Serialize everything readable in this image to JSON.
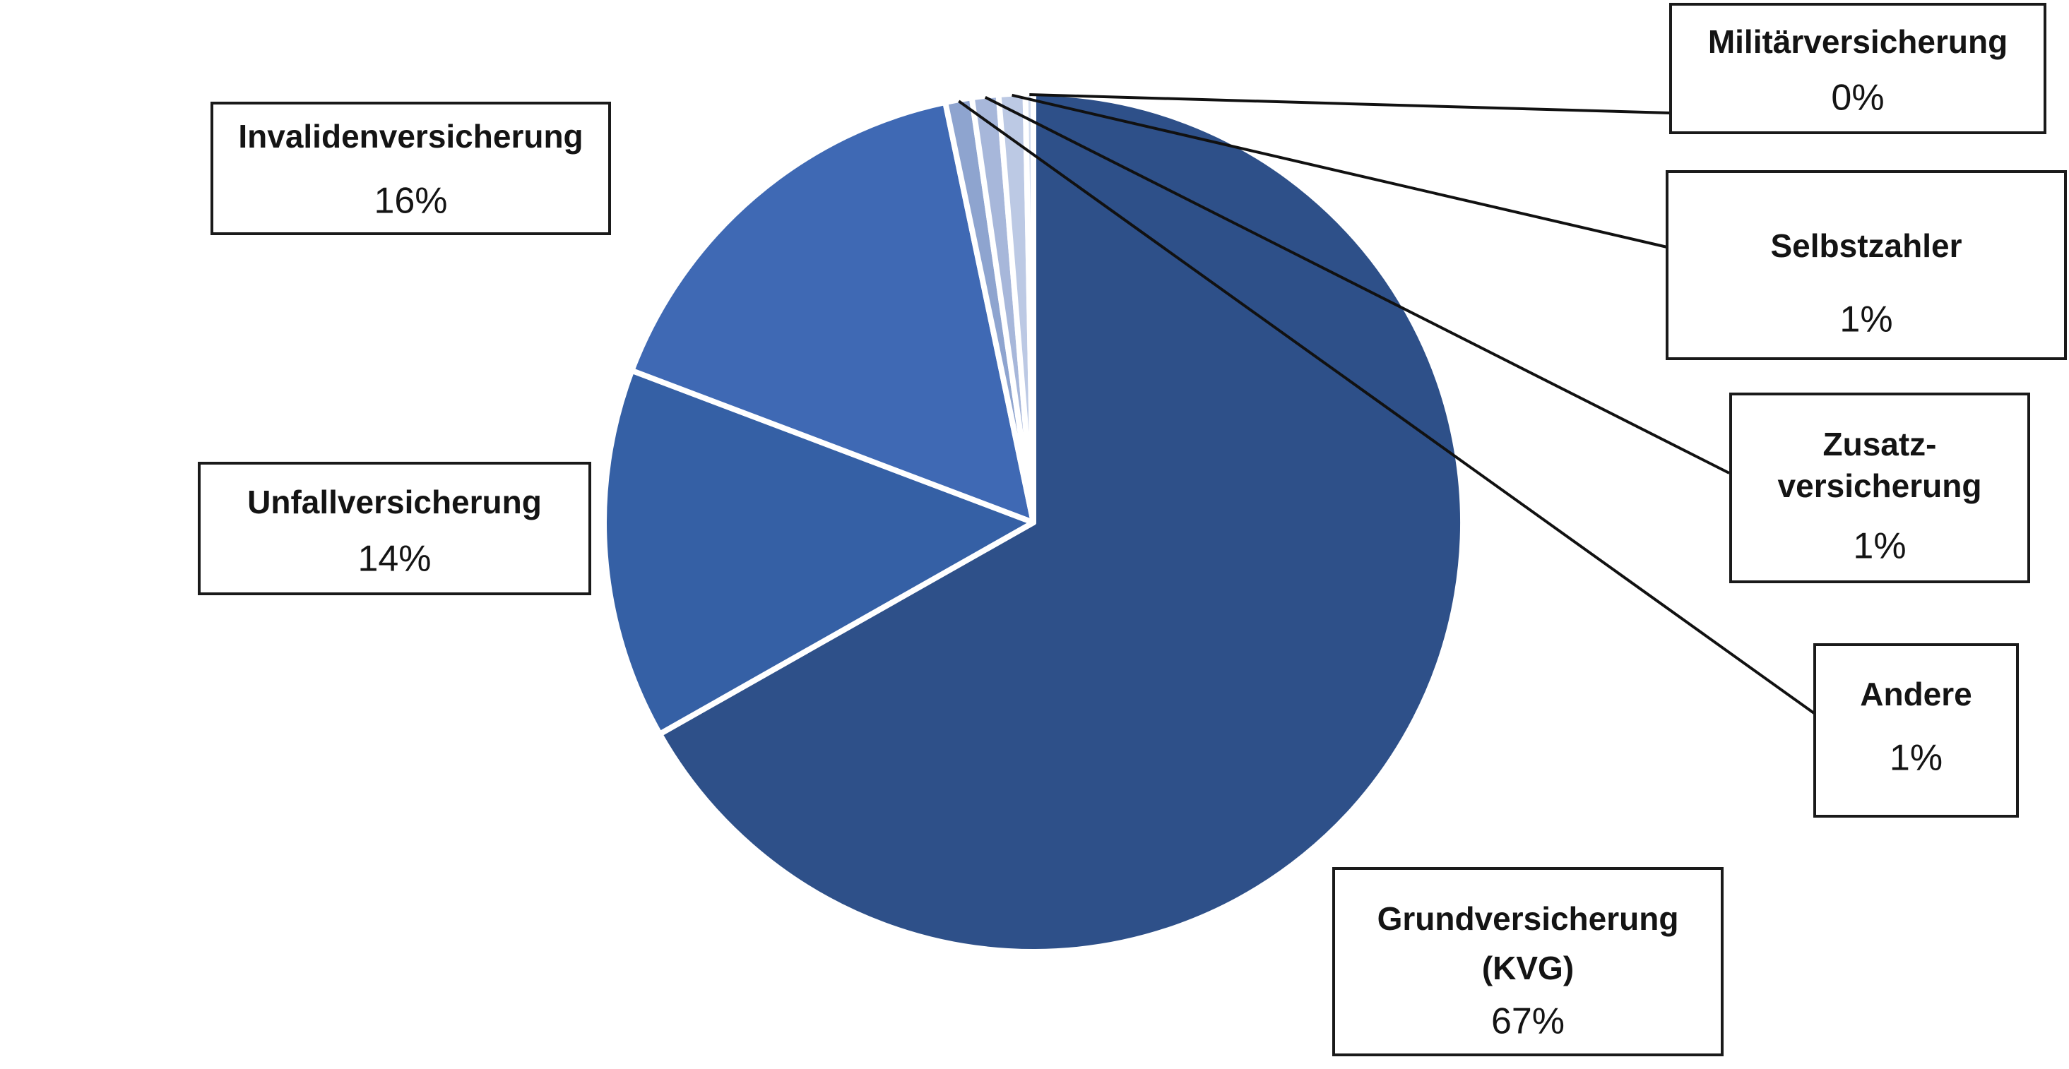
{
  "chart_data": {
    "type": "pie",
    "title": "",
    "slices": [
      {
        "label": [
          "Grundversicherung",
          "(KVG)"
        ],
        "value_label": "67%",
        "value": 67,
        "color": "#2e5089"
      },
      {
        "label": [
          "Unfallversicherung"
        ],
        "value_label": "14%",
        "value": 14,
        "color": "#3560a5"
      },
      {
        "label": [
          "Invalidenversicherung"
        ],
        "value_label": "16%",
        "value": 16,
        "color": "#3f69b4"
      },
      {
        "label": [
          "Andere"
        ],
        "value_label": "1%",
        "value": 1,
        "color": "#8ea4cf"
      },
      {
        "label": [
          "Zusatz-",
          "versicherung"
        ],
        "value_label": "1%",
        "value": 1,
        "color": "#a7b7da"
      },
      {
        "label": [
          "Selbstzahler"
        ],
        "value_label": "1%",
        "value": 1,
        "color": "#bcc9e4"
      },
      {
        "label": [
          "Militärversicherung"
        ],
        "value_label": "0%",
        "value": 0.3,
        "color": "#d3ddef"
      }
    ]
  }
}
